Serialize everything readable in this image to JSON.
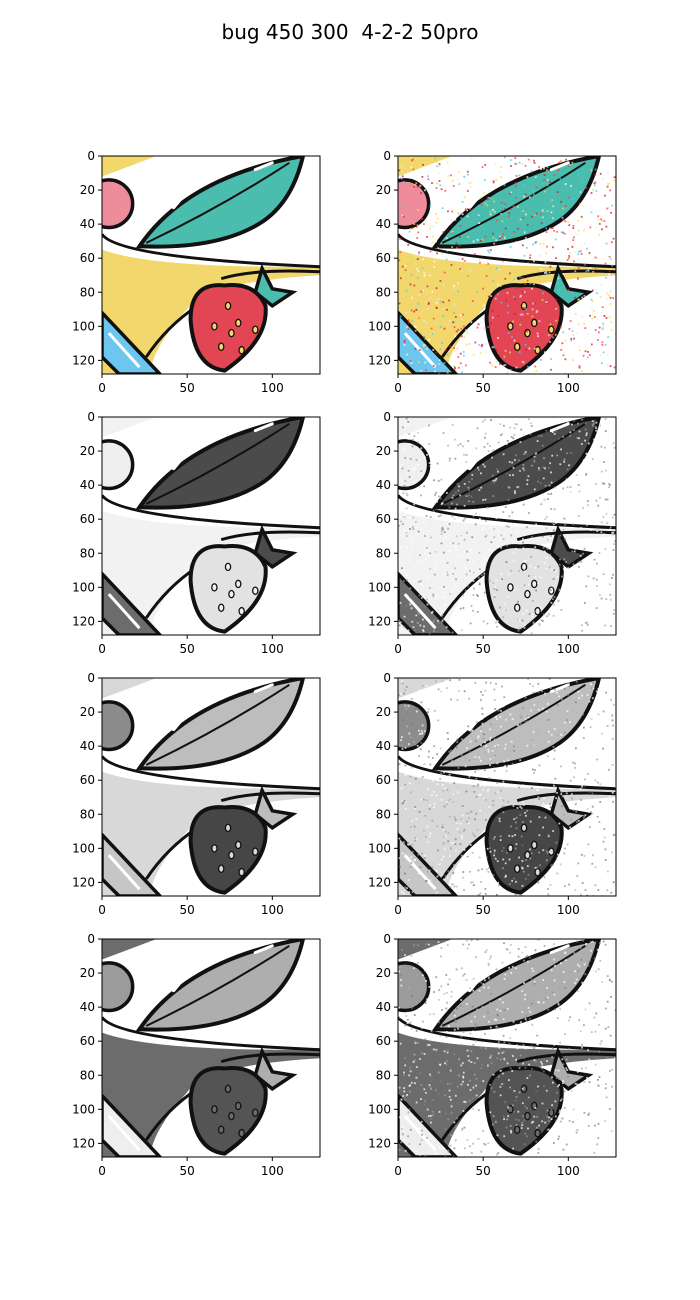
{
  "figure": {
    "title": "bug 450 300  4-2-2 50pro"
  },
  "colors": {
    "yellow": "#f2d86c",
    "teal": "#4bbdae",
    "red": "#e24654",
    "pink": "#ef8c9b",
    "blue": "#6cc6ee",
    "ink": "#111111"
  },
  "chart_data": [
    {
      "type": "image",
      "row": 1,
      "col": 1,
      "channel": "rgb",
      "noise": false,
      "x_ticks": [
        0,
        50,
        100
      ],
      "y_ticks": [
        0,
        20,
        40,
        60,
        80,
        100,
        120
      ],
      "xlim": [
        0,
        128
      ],
      "ylim": [
        128,
        0
      ]
    },
    {
      "type": "image",
      "row": 1,
      "col": 2,
      "channel": "rgb",
      "noise": true,
      "x_ticks": [
        0,
        50,
        100
      ],
      "y_ticks": [
        0,
        20,
        40,
        60,
        80,
        100,
        120
      ],
      "xlim": [
        0,
        128
      ],
      "ylim": [
        128,
        0
      ]
    },
    {
      "type": "image",
      "row": 2,
      "col": 1,
      "channel": "r",
      "noise": false,
      "x_ticks": [
        0,
        50,
        100
      ],
      "y_ticks": [
        0,
        20,
        40,
        60,
        80,
        100,
        120
      ],
      "xlim": [
        0,
        128
      ],
      "ylim": [
        128,
        0
      ]
    },
    {
      "type": "image",
      "row": 2,
      "col": 2,
      "channel": "r",
      "noise": true,
      "x_ticks": [
        0,
        50,
        100
      ],
      "y_ticks": [
        0,
        20,
        40,
        60,
        80,
        100,
        120
      ],
      "xlim": [
        0,
        128
      ],
      "ylim": [
        128,
        0
      ]
    },
    {
      "type": "image",
      "row": 3,
      "col": 1,
      "channel": "g",
      "noise": false,
      "x_ticks": [
        0,
        50,
        100
      ],
      "y_ticks": [
        0,
        20,
        40,
        60,
        80,
        100,
        120
      ],
      "xlim": [
        0,
        128
      ],
      "ylim": [
        128,
        0
      ]
    },
    {
      "type": "image",
      "row": 3,
      "col": 2,
      "channel": "g",
      "noise": true,
      "x_ticks": [
        0,
        50,
        100
      ],
      "y_ticks": [
        0,
        20,
        40,
        60,
        80,
        100,
        120
      ],
      "xlim": [
        0,
        128
      ],
      "ylim": [
        128,
        0
      ]
    },
    {
      "type": "image",
      "row": 4,
      "col": 1,
      "channel": "b",
      "noise": false,
      "x_ticks": [
        0,
        50,
        100
      ],
      "y_ticks": [
        0,
        20,
        40,
        60,
        80,
        100,
        120
      ],
      "xlim": [
        0,
        128
      ],
      "ylim": [
        128,
        0
      ]
    },
    {
      "type": "image",
      "row": 4,
      "col": 2,
      "channel": "b",
      "noise": true,
      "x_ticks": [
        0,
        50,
        100
      ],
      "y_ticks": [
        0,
        20,
        40,
        60,
        80,
        100,
        120
      ],
      "xlim": [
        0,
        128
      ],
      "ylim": [
        128,
        0
      ]
    }
  ]
}
